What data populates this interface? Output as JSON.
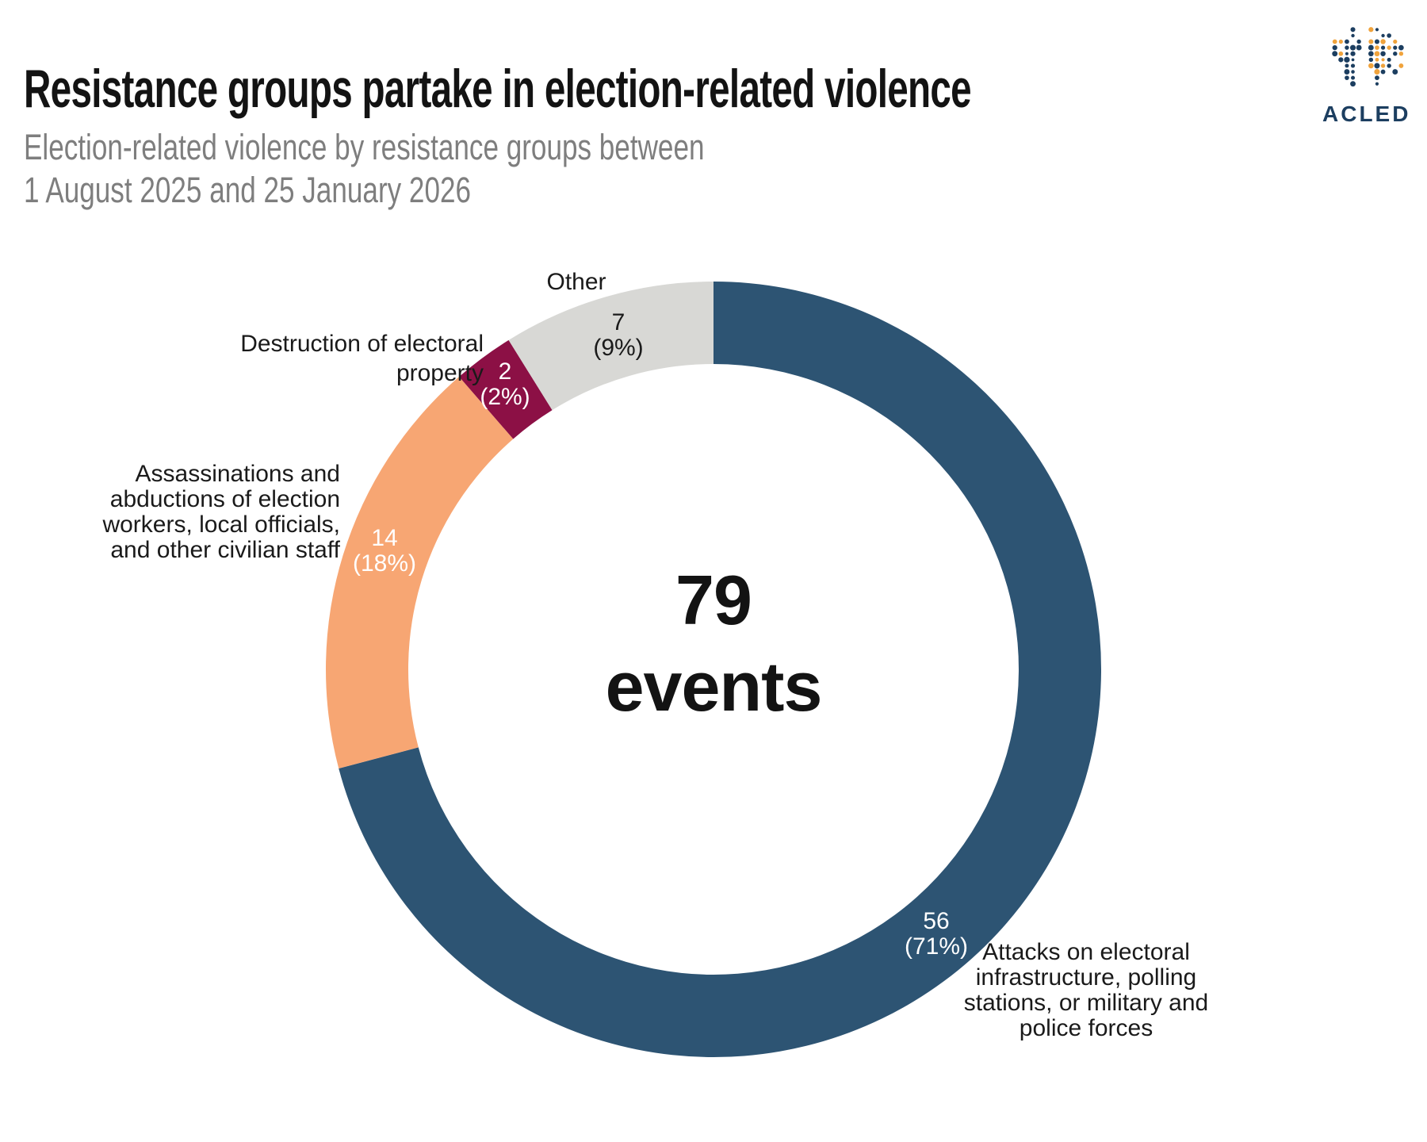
{
  "header": {
    "title": "Resistance groups partake in election-related violence",
    "subtitle": "Election-related violence by resistance groups between\n1 August 2025 and 25 January 2026"
  },
  "logo": {
    "text": "ACLED",
    "icon": "dotted-globe-icon",
    "primary_color": "#1c3e60",
    "accent_color": "#f0a33c"
  },
  "center": {
    "line1": "79",
    "line2": "events"
  },
  "chart_data": {
    "type": "pie",
    "subtype": "donut",
    "title": "Resistance groups partake in election-related violence",
    "subtitle": "Election-related violence by resistance groups between 1 August 2025 and 25 January 2026",
    "total_events": 79,
    "center_label": "79 events",
    "start_angle_deg": 0,
    "direction": "clockwise",
    "legend_position": "callout-labels",
    "segments": [
      {
        "id": "attacks",
        "label": "Attacks on electoral infrastructure, polling stations, or military and police forces",
        "value": 56,
        "pct": 71,
        "color": "#2d5473"
      },
      {
        "id": "assassinations",
        "label": "Assassinations and abductions of election workers, local officials, and other civilian staff",
        "value": 14,
        "pct": 18,
        "color": "#f7a673"
      },
      {
        "id": "destruction",
        "label": "Destruction of electoral property",
        "value": 2,
        "pct": 2,
        "color": "#8c1045"
      },
      {
        "id": "other",
        "label": "Other",
        "value": 7,
        "pct": 9,
        "color": "#d8d8d5"
      }
    ]
  },
  "callouts": {
    "attacks": {
      "name": "Attacks on electoral\ninfrastructure, polling\nstations, or military and\npolice forces",
      "value_label": "56\n(71%)"
    },
    "assassinations": {
      "name": "Assassinations and\nabductions of election\nworkers, local officials,\nand other civilian staff",
      "value_label": "14\n(18%)"
    },
    "destruction": {
      "name": "Destruction of electoral\nproperty",
      "value_label": "2\n(2%)"
    },
    "other": {
      "name": "Other",
      "value_label": "7\n(9%)"
    }
  }
}
